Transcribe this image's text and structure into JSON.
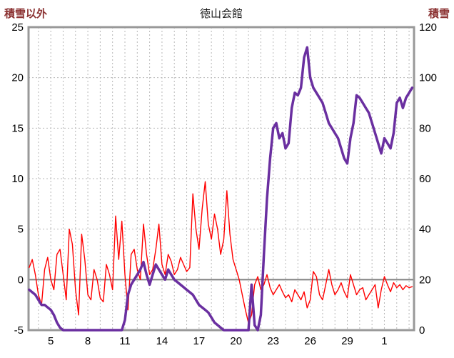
{
  "header": {
    "left_axis_title": "積雪以外",
    "title": "徳山会館",
    "right_axis_title": "積雪"
  },
  "colors": {
    "temp_line": "#ff0000",
    "snow_line": "#6a2fa0",
    "frame": "#999999",
    "grid": "#b8b8b8",
    "zero_line": "#808080",
    "tick_text": "#000000",
    "axis_title_text": "#8b3232"
  },
  "chart_data": {
    "type": "line",
    "title": "徳山会館",
    "left_axis": {
      "label": "積雪以外",
      "ticks": [
        25,
        20,
        15,
        10,
        5,
        0,
        -5
      ],
      "range": [
        -5,
        25
      ]
    },
    "right_axis": {
      "label": "積雪",
      "ticks": [
        120,
        100,
        80,
        60,
        40,
        20,
        0
      ],
      "range": [
        0,
        120
      ]
    },
    "x_axis": {
      "tick_values": [
        5,
        8,
        11,
        14,
        17,
        20,
        23,
        26,
        29,
        32
      ],
      "tick_labels": [
        "5",
        "8",
        "11",
        "14",
        "17",
        "20",
        "23",
        "26",
        "29",
        "1"
      ],
      "minor_grid_step": 1,
      "range": [
        3.2,
        34.4
      ]
    },
    "grid": true,
    "legend": "none",
    "series": [
      {
        "name": "積雪以外",
        "axis": "left",
        "color": "#ff0000",
        "width": 1.4,
        "x_start": 3.25,
        "x_step": 0.25,
        "values": [
          1.2,
          2,
          0.5,
          -1.5,
          -2.5,
          1,
          2.2,
          0,
          -1,
          2.5,
          3,
          0.5,
          -2,
          5,
          3.5,
          -1,
          -3.5,
          4.5,
          2,
          -1.5,
          -2,
          1,
          0,
          -1.8,
          -2.2,
          1.5,
          0.5,
          -1,
          6.3,
          2,
          5.8,
          0.5,
          -3,
          2.5,
          3,
          1,
          0,
          5.5,
          2.5,
          0.5,
          1,
          3,
          5.5,
          1.5,
          0.5,
          2.5,
          1.8,
          0.5,
          1,
          2.2,
          1.5,
          0.8,
          1.2,
          8.5,
          5,
          3,
          7,
          9.7,
          5.5,
          4,
          6.5,
          5,
          2.5,
          4,
          8.8,
          4.5,
          2,
          1,
          0,
          -1.5,
          -3,
          -4.3,
          -3.5,
          -0.5,
          0.3,
          -1,
          -0.5,
          0.5,
          -0.8,
          -1.5,
          -1,
          -0.5,
          -1.2,
          -1.8,
          -1.5,
          -2.2,
          -1,
          -1.5,
          -2,
          -1.2,
          -2.8,
          -2,
          0.8,
          0.3,
          -1.5,
          -2,
          -0.5,
          1,
          -0.5,
          -1.5,
          -1,
          -0.3,
          -1.2,
          -1.8,
          0.5,
          -0.5,
          -1.5,
          -1,
          -0.8,
          -2,
          -1.5,
          -1,
          -0.5,
          -2.8,
          -1,
          0.3,
          -0.5,
          -1.2,
          -0.3,
          -0.8,
          -0.5,
          -1,
          -0.6,
          -0.8,
          -0.7
        ]
      },
      {
        "name": "積雪",
        "axis": "right",
        "color": "#6a2fa0",
        "width": 3.5,
        "x_start": 3.25,
        "x_step": 0.25,
        "values": [
          16,
          15,
          14,
          12,
          10,
          10,
          9,
          8,
          6,
          3,
          1,
          0,
          0,
          0,
          0,
          0,
          0,
          0,
          0,
          0,
          0,
          0,
          0,
          0,
          0,
          0,
          0,
          0,
          0,
          0,
          0,
          4,
          14,
          18,
          20,
          22,
          24,
          27,
          22,
          18,
          22,
          26,
          24,
          22,
          20,
          24,
          22,
          20,
          19,
          18,
          17,
          16,
          15,
          14,
          12,
          10,
          9,
          8,
          7,
          5,
          3,
          2,
          1,
          0,
          0,
          0,
          0,
          0,
          0,
          0,
          0,
          0,
          18,
          2,
          0,
          6,
          30,
          52,
          68,
          80,
          82,
          76,
          78,
          72,
          74,
          88,
          94,
          93,
          96,
          108,
          112,
          100,
          96,
          94,
          92,
          90,
          86,
          82,
          80,
          78,
          76,
          72,
          68,
          66,
          76,
          82,
          93,
          92,
          90,
          88,
          86,
          82,
          78,
          74,
          70,
          76,
          74,
          72,
          78,
          90,
          92,
          88,
          92,
          94,
          96
        ]
      }
    ]
  }
}
